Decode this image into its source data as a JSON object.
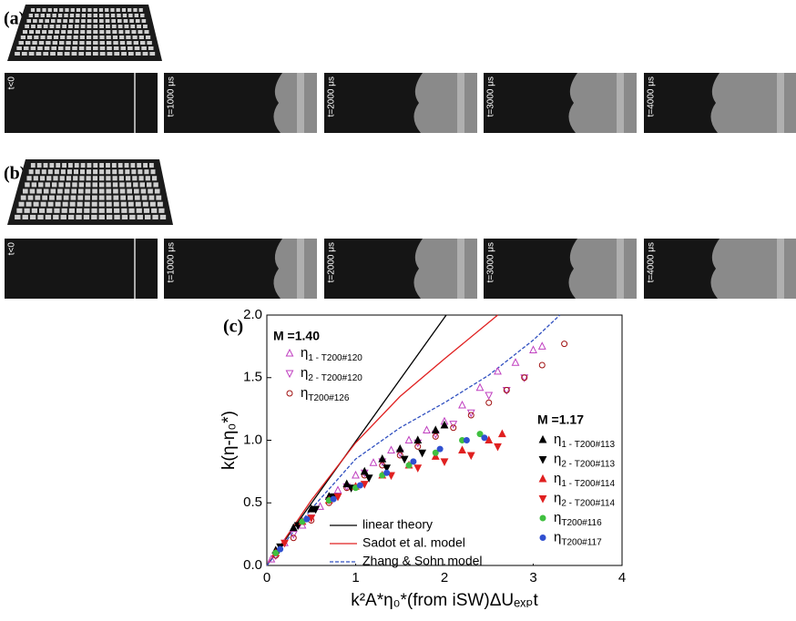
{
  "panels": [
    {
      "label": "(a)",
      "frames": [
        "t<0",
        "t=1000 μs",
        "t=2000 μs",
        "t=3000 μs",
        "t=4000 μs"
      ]
    },
    {
      "label": "(b)",
      "frames": [
        "t<0",
        "t=1000 μs",
        "t=2000 μs",
        "t=3000 μs",
        "t=4000 μs"
      ]
    }
  ],
  "chart_data": {
    "type": "scatter",
    "label": "(c)",
    "xlabel": "k²A*η₀*(from iSW)ΔUₑₓₚt",
    "ylabel": "k(η-η₀*)",
    "xlim": [
      0,
      4
    ],
    "ylim": [
      0,
      2.0
    ],
    "xticks": [
      0,
      1,
      2,
      3,
      4
    ],
    "yticks": [
      {
        "value": 0,
        "label": "0.0"
      },
      0.5,
      {
        "value": 1,
        "label": "1.0"
      },
      1.5,
      {
        "value": 2,
        "label": "2.0"
      }
    ],
    "legend_titles": [
      "M =1.40",
      "M =1.17"
    ],
    "series": [
      {
        "name": "η",
        "name_subscript": "1 - T200#120",
        "color": "#c040c0",
        "marker": "triangle-up",
        "filled": false,
        "x": [
          0.05,
          0.2,
          0.4,
          0.6,
          0.8,
          1.0,
          1.2,
          1.4,
          1.6,
          1.8,
          2.0,
          2.2,
          2.4,
          2.6,
          2.8,
          3.0,
          3.1
        ],
        "values": [
          0.05,
          0.18,
          0.32,
          0.47,
          0.6,
          0.72,
          0.82,
          0.92,
          1.0,
          1.08,
          1.15,
          1.28,
          1.42,
          1.55,
          1.62,
          1.72,
          1.75
        ]
      },
      {
        "name": "η",
        "name_subscript": "2 - T200#120",
        "color": "#c040c0",
        "marker": "triangle-down",
        "filled": false,
        "x": [
          0.1,
          0.3,
          0.5,
          0.7,
          0.9,
          1.1,
          1.3,
          1.5,
          1.7,
          1.9,
          2.1,
          2.3,
          2.5,
          2.7,
          2.9
        ],
        "values": [
          0.08,
          0.25,
          0.38,
          0.52,
          0.63,
          0.74,
          0.83,
          0.9,
          0.98,
          1.05,
          1.13,
          1.22,
          1.36,
          1.4,
          1.5
        ]
      },
      {
        "name": "η",
        "name_subscript": "T200#126",
        "color": "#a01010",
        "marker": "circle",
        "filled": false,
        "x": [
          0.1,
          0.3,
          0.5,
          0.7,
          0.9,
          1.1,
          1.3,
          1.5,
          1.7,
          1.9,
          2.1,
          2.3,
          2.5,
          2.7,
          2.9,
          3.1,
          3.35
        ],
        "values": [
          0.08,
          0.22,
          0.36,
          0.5,
          0.62,
          0.72,
          0.8,
          0.88,
          0.95,
          1.03,
          1.1,
          1.2,
          1.3,
          1.4,
          1.5,
          1.6,
          1.77
        ]
      },
      {
        "name": "η",
        "name_subscript": "1 - T200#113",
        "color": "#000000",
        "marker": "triangle-up",
        "filled": true,
        "x": [
          0.1,
          0.3,
          0.5,
          0.7,
          0.9,
          1.1,
          1.3,
          1.5,
          1.7,
          1.9,
          2.0
        ],
        "values": [
          0.12,
          0.3,
          0.45,
          0.55,
          0.65,
          0.75,
          0.85,
          0.93,
          1.0,
          1.08,
          1.12
        ]
      },
      {
        "name": "η",
        "name_subscript": "2 - T200#113",
        "color": "#000000",
        "marker": "triangle-down",
        "filled": true,
        "x": [
          0.15,
          0.35,
          0.55,
          0.75,
          0.95,
          1.15,
          1.35,
          1.55,
          1.75
        ],
        "values": [
          0.15,
          0.32,
          0.45,
          0.55,
          0.62,
          0.7,
          0.78,
          0.85,
          0.9
        ]
      },
      {
        "name": "η",
        "name_subscript": "1 - T200#114",
        "color": "#e02020",
        "marker": "triangle-up",
        "filled": true,
        "x": [
          0.1,
          0.4,
          0.7,
          1.0,
          1.3,
          1.6,
          1.9,
          2.2,
          2.5,
          2.65
        ],
        "values": [
          0.1,
          0.35,
          0.52,
          0.63,
          0.72,
          0.8,
          0.87,
          0.92,
          1.0,
          1.05
        ]
      },
      {
        "name": "η",
        "name_subscript": "2 - T200#114",
        "color": "#e02020",
        "marker": "triangle-down",
        "filled": true,
        "x": [
          0.2,
          0.5,
          0.8,
          1.1,
          1.4,
          1.7,
          2.0,
          2.3,
          2.6
        ],
        "values": [
          0.18,
          0.38,
          0.55,
          0.65,
          0.72,
          0.78,
          0.83,
          0.88,
          0.95
        ]
      },
      {
        "name": "η",
        "name_subscript": "T200#116",
        "color": "#40c040",
        "marker": "circle",
        "filled": true,
        "x": [
          0.1,
          0.4,
          0.7,
          1.0,
          1.3,
          1.6,
          1.9,
          2.2,
          2.4
        ],
        "values": [
          0.1,
          0.35,
          0.52,
          0.62,
          0.72,
          0.8,
          0.9,
          1.0,
          1.05
        ]
      },
      {
        "name": "η",
        "name_subscript": "T200#117",
        "color": "#3050d0",
        "marker": "circle",
        "filled": true,
        "x": [
          0.15,
          0.45,
          0.75,
          1.05,
          1.35,
          1.65,
          1.95,
          2.25,
          2.45
        ],
        "values": [
          0.13,
          0.37,
          0.53,
          0.64,
          0.74,
          0.83,
          0.93,
          1.0,
          1.02
        ]
      }
    ],
    "lines": [
      {
        "name": "linear theory",
        "color": "#000000",
        "dashed": false,
        "x": [
          0,
          2.02
        ],
        "values": [
          0,
          2.0
        ]
      },
      {
        "name": "Sadot et al. model",
        "color": "#e02020",
        "dashed": false,
        "x": [
          0,
          0.5,
          1.0,
          1.5,
          2.0,
          2.6
        ],
        "values": [
          0,
          0.52,
          0.98,
          1.35,
          1.65,
          2.0
        ]
      },
      {
        "name": "Zhang & Sohn model",
        "color": "#3050c0",
        "dashed": true,
        "x": [
          0,
          0.5,
          1,
          1.5,
          2,
          2.5,
          3,
          3.3
        ],
        "values": [
          0,
          0.45,
          0.85,
          1.1,
          1.3,
          1.52,
          1.8,
          2.0
        ]
      }
    ]
  }
}
